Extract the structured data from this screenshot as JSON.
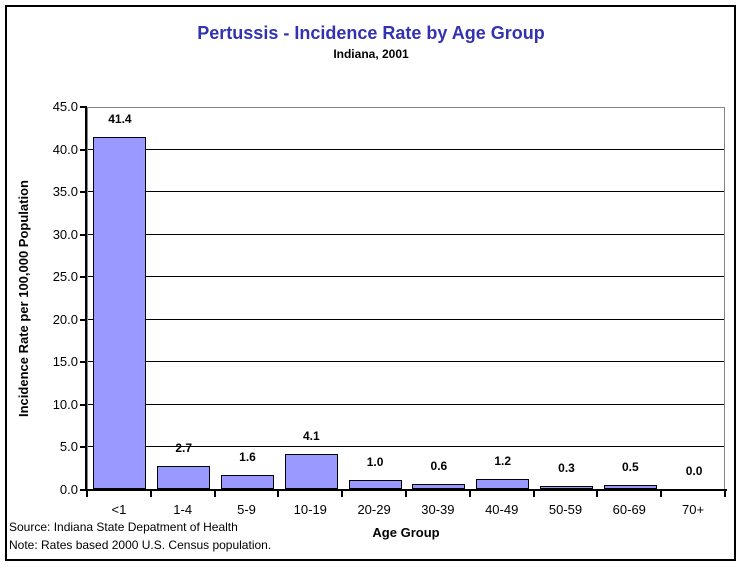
{
  "chart_data": {
    "type": "bar",
    "title": "Pertussis - Incidence Rate by Age Group",
    "subtitle": "Indiana, 2001",
    "categories": [
      "<1",
      "1-4",
      "5-9",
      "10-19",
      "20-29",
      "30-39",
      "40-49",
      "50-59",
      "60-69",
      "70+"
    ],
    "values": [
      41.4,
      2.7,
      1.6,
      4.1,
      1.0,
      0.6,
      1.2,
      0.3,
      0.5,
      0.0
    ],
    "data_labels": [
      "41.4",
      "2.7",
      "1.6",
      "4.1",
      "1.0",
      "0.6",
      "1.2",
      "0.3",
      "0.5",
      "0.0"
    ],
    "xlabel": "Age Group",
    "ylabel": "Incidence Rate per 100,000 Population",
    "ylim": [
      0,
      45
    ],
    "ytick_step": 5,
    "ytick_labels": [
      "0.0",
      "5.0",
      "10.0",
      "15.0",
      "20.0",
      "25.0",
      "30.0",
      "35.0",
      "40.0",
      "45.0"
    ],
    "grid": true,
    "legend": "none",
    "colors": {
      "bar_fill": "#9999FF",
      "bar_border": "#000000",
      "title": "#3333B2",
      "gridline": "#000000",
      "plot_border": "#848484",
      "axis": "#000000"
    }
  },
  "footer": {
    "source_line": "Source: Indiana State Depatment of Health",
    "note_line": "Note: Rates based 2000 U.S. Census population."
  }
}
